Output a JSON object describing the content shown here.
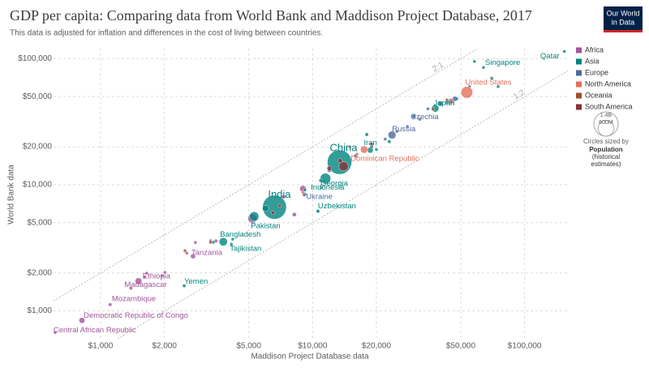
{
  "chart_data": {
    "type": "scatter",
    "title": "GDP per capita: Comparing data from World Bank and Maddison Project Database, 2017",
    "subtitle": "This data is adjusted for inflation and differences in the cost of living between countries.",
    "logo": [
      "Our World",
      "in Data"
    ],
    "x_label": "Maddison Project Database data",
    "y_label": "World Bank data",
    "log_x": true,
    "log_y": true,
    "grid": true,
    "legend": "right",
    "xlim": [
      600,
      160000
    ],
    "ylim": [
      600,
      120000
    ],
    "xticks": [
      {
        "value": 1000,
        "label": "$1,000"
      },
      {
        "value": 2000,
        "label": "$2,000"
      },
      {
        "value": 5000,
        "label": "$5,000"
      },
      {
        "value": 10000,
        "label": "$10,000"
      },
      {
        "value": 20000,
        "label": "$20,000"
      },
      {
        "value": 50000,
        "label": "$50,000"
      },
      {
        "value": 100000,
        "label": "$100,000"
      }
    ],
    "yticks": [
      {
        "value": 1000,
        "label": "$1,000"
      },
      {
        "value": 2000,
        "label": "$2,000"
      },
      {
        "value": 5000,
        "label": "$5,000"
      },
      {
        "value": 10000,
        "label": "$10,000"
      },
      {
        "value": 20000,
        "label": "$20,000"
      },
      {
        "value": 50000,
        "label": "$50,000"
      },
      {
        "value": 100000,
        "label": "$100,000"
      }
    ],
    "reference_lines": [
      {
        "ratio": 2,
        "label": "2:1"
      },
      {
        "ratio": 0.5,
        "label": "1:2"
      }
    ],
    "size_legend": {
      "title": "Circles sized by",
      "label": [
        "Population",
        "(historical",
        "estimates)"
      ],
      "circles": [
        {
          "value": 1400,
          "label": "1.4B"
        },
        {
          "value": 600,
          "label": "600M"
        }
      ]
    },
    "series": [
      {
        "name": "Africa",
        "color": "#a2559c",
        "labels": [
          "Ethiopia",
          "Madagascar",
          "Mozambique",
          "Democratic Republic of Congo",
          "Central African Republic",
          "Tanzania",
          null,
          null,
          null,
          null,
          null,
          null,
          null,
          null,
          null,
          null,
          null,
          null
        ],
        "x": [
          1510,
          1390,
          1110,
          817,
          610,
          2730,
          1610,
          1650,
          2010,
          2550,
          2800,
          3500,
          5200,
          8200,
          9000,
          7300,
          1950,
          3300
        ],
        "values": [
          1720,
          1510,
          1120,
          839,
          673,
          2710,
          1850,
          1990,
          2020,
          2870,
          3480,
          3580,
          5400,
          5800,
          9300,
          8000,
          1900,
          3600
        ],
        "sizes": [
          105,
          25,
          29,
          81,
          5,
          57,
          15,
          20,
          18,
          24,
          12,
          30,
          190,
          40,
          97,
          35,
          8,
          20
        ]
      },
      {
        "name": "Asia",
        "color": "#00847e",
        "labels": [
          "Qatar",
          "Singapore",
          "Japan",
          "Iran",
          "China",
          "Indonesia",
          "Georgia",
          "Uzbekistan",
          "India",
          "Pakistan",
          "Bangladesh",
          "Tajikistan",
          "Yemen",
          null,
          null,
          null,
          null,
          null,
          null,
          null,
          null,
          null,
          null,
          null,
          null,
          null
        ],
        "x": [
          154000,
          64000,
          37900,
          18700,
          13400,
          11500,
          10900,
          10600,
          6610,
          5300,
          3790,
          4140,
          2480,
          9200,
          18000,
          20000,
          23000,
          30000,
          43000,
          48000,
          70000,
          58000,
          4200,
          3400,
          75000,
          6000
        ],
        "values": [
          114000,
          85000,
          40300,
          18800,
          15100,
          11200,
          10800,
          6170,
          6630,
          5600,
          3530,
          3380,
          1580,
          9100,
          25000,
          19000,
          22000,
          35000,
          45000,
          48000,
          70000,
          95000,
          3700,
          3500,
          60000,
          6500
        ],
        "sizes": [
          3,
          6,
          127,
          81,
          1400,
          264,
          4,
          32,
          1340,
          208,
          160,
          9,
          28,
          10,
          30,
          20,
          30,
          50,
          10,
          5,
          4,
          1,
          20,
          15,
          10,
          95
        ]
      },
      {
        "name": "Europe",
        "color": "#4c6a9c",
        "labels": [
          "Czechia",
          "Russia",
          "Ukraine",
          null,
          null,
          null,
          null,
          null,
          null,
          null,
          null,
          null,
          null,
          null,
          null
        ],
        "x": [
          30100,
          23700,
          9150,
          25000,
          28000,
          32000,
          35000,
          40000,
          45000,
          47000,
          55000,
          12000,
          16000,
          19000,
          22000
        ],
        "values": [
          34800,
          24800,
          8390,
          26500,
          29000,
          33000,
          40000,
          44000,
          46000,
          48000,
          60000,
          13000,
          17000,
          20000,
          23000
        ],
        "sizes": [
          11,
          145,
          44,
          10,
          5,
          8,
          17,
          65,
          80,
          60,
          9,
          40,
          38,
          30,
          20
        ]
      },
      {
        "name": "North America",
        "color": "#e56e5a",
        "labels": [
          "United States",
          "Dominican Republic",
          null,
          null,
          null,
          null,
          null
        ],
        "x": [
          53400,
          16200,
          15000,
          11000,
          9000,
          45000,
          17500
        ],
        "values": [
          54000,
          17500,
          20000,
          9500,
          8700,
          46000,
          19000
        ],
        "sizes": [
          325,
          11,
          10,
          5,
          3,
          37,
          125
        ]
      },
      {
        "name": "Oceania",
        "color": "#9a5129",
        "labels": [
          null,
          null,
          null,
          null
        ],
        "x": [
          43000,
          37000,
          2500,
          3300
        ],
        "values": [
          47000,
          40000,
          3000,
          3500
        ],
        "sizes": [
          24,
          5,
          8,
          1
        ]
      },
      {
        "name": "South America",
        "color": "#883039",
        "labels": [
          null,
          null,
          null,
          null,
          null,
          null
        ],
        "x": [
          14000,
          13500,
          12000,
          7000,
          19000,
          6500
        ],
        "values": [
          14000,
          15500,
          13500,
          6800,
          21000,
          6000
        ],
        "sizes": [
          208,
          44,
          50,
          11,
          18,
          32
        ]
      }
    ]
  }
}
